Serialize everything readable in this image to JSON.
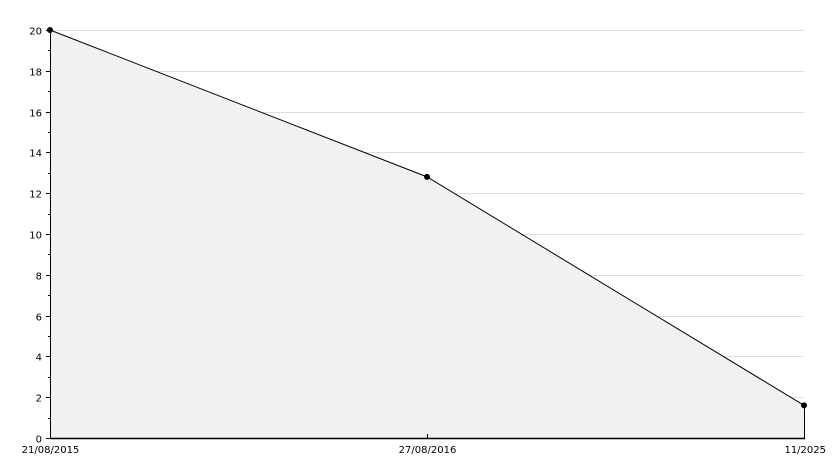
{
  "chart_data": {
    "type": "area",
    "categories": [
      "21/08/2015",
      "27/08/2016",
      "11/2025"
    ],
    "values": [
      20,
      12.8,
      1.6
    ],
    "title": "",
    "xlabel": "",
    "ylabel": "",
    "ylim": [
      0,
      20
    ],
    "yticks": [
      0,
      2,
      4,
      6,
      8,
      10,
      12,
      14,
      16,
      18,
      20
    ],
    "grid": true,
    "colors": {
      "fill": "#f1f1f1",
      "line": "#000000",
      "grid": "#dddddd",
      "marker": "#000000"
    }
  }
}
